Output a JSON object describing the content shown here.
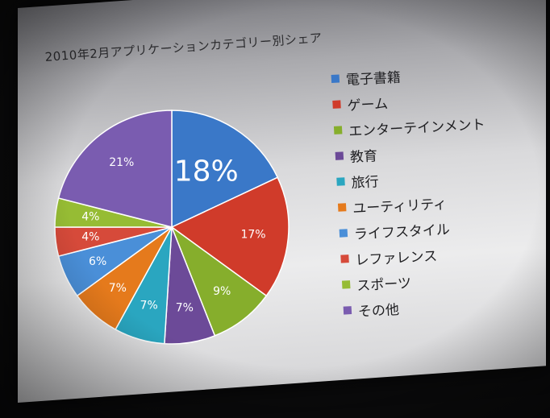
{
  "title": "2010年2月アプリケーションカテゴリー別シェア",
  "chart_data": {
    "type": "pie",
    "title": "2010年2月アプリケーションカテゴリー別シェア",
    "categories": [
      "電子書籍",
      "ゲーム",
      "エンターテインメント",
      "教育",
      "旅行",
      "ユーティリティ",
      "ライフスタイル",
      "レファレンス",
      "スポーツ",
      "その他"
    ],
    "values": [
      18,
      17,
      9,
      7,
      7,
      7,
      6,
      4,
      4,
      21
    ],
    "labels": [
      "18%",
      "17%",
      "9%",
      "7%",
      "7%",
      "7%",
      "6%",
      "4%",
      "4%",
      "21%"
    ],
    "colors": [
      "#3a78c8",
      "#d03b2a",
      "#86ae2c",
      "#6c4a98",
      "#2aa6c0",
      "#e57a1c",
      "#4a8fd8",
      "#d64a3a",
      "#96bc34",
      "#7a5cb0"
    ],
    "legend_position": "right"
  }
}
